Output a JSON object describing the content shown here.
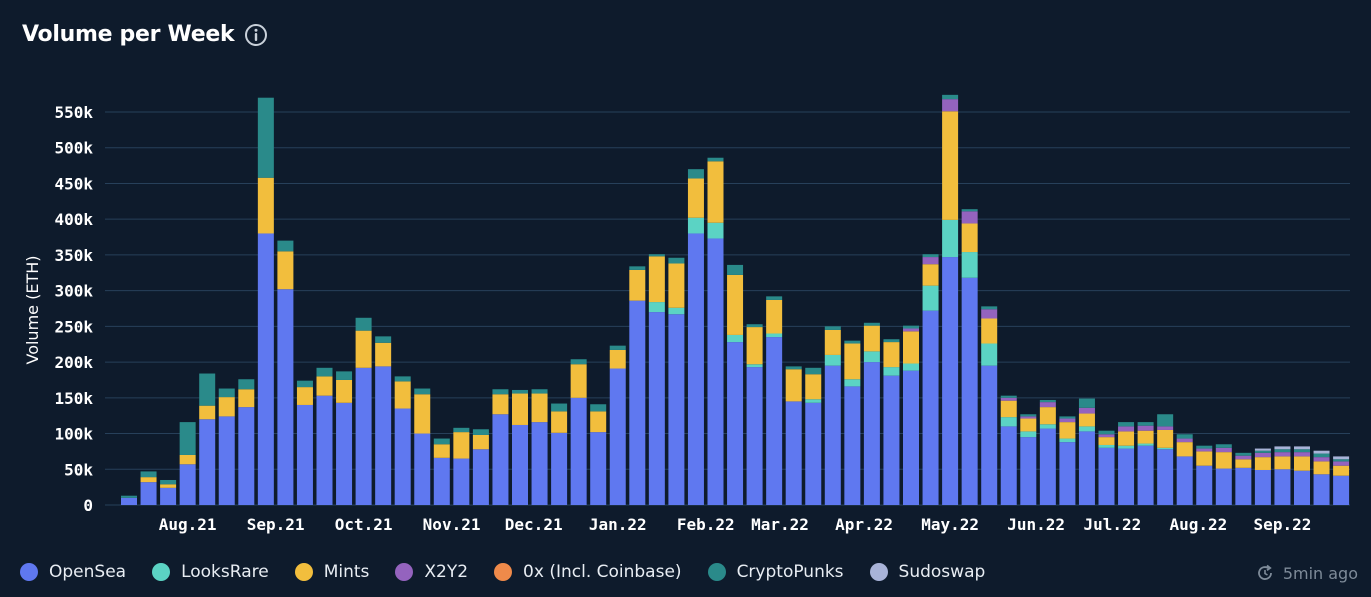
{
  "header": {
    "title": "Volume per Week",
    "info_icon": "info-icon"
  },
  "updated": {
    "text": "5min ago",
    "icon": "refresh-icon"
  },
  "colors": {
    "background": "#0e1b2c",
    "grid": "#27405a",
    "OpenSea": "#5f78f0",
    "LooksRare": "#5bd3c4",
    "Mints": "#f2be3d",
    "X2Y2": "#9463be",
    "0x (Incl. Coinbase)": "#ef8a4a",
    "CryptoPunks": "#2a8a8a",
    "Sudoswap": "#a8b3d8"
  },
  "legend": [
    "OpenSea",
    "LooksRare",
    "Mints",
    "X2Y2",
    "0x (Incl. Coinbase)",
    "CryptoPunks",
    "Sudoswap"
  ],
  "chart_data": {
    "type": "bar",
    "stacked": true,
    "title": "Volume per Week",
    "ylabel": "Volume (ETH)",
    "xlabel": "",
    "ylim": [
      0,
      580000
    ],
    "yticks": [
      0,
      50000,
      100000,
      150000,
      200000,
      250000,
      300000,
      350000,
      400000,
      450000,
      500000,
      550000
    ],
    "ytick_labels": [
      "0",
      "50k",
      "100k",
      "150k",
      "200k",
      "250k",
      "300k",
      "350k",
      "400k",
      "450k",
      "500k",
      "550k"
    ],
    "xtick_labels": [
      {
        "label": "Aug.21",
        "bar_index": 3
      },
      {
        "label": "Sep.21",
        "bar_index": 7.5
      },
      {
        "label": "Oct.21",
        "bar_index": 12
      },
      {
        "label": "Nov.21",
        "bar_index": 16.5
      },
      {
        "label": "Dec.21",
        "bar_index": 20.7
      },
      {
        "label": "Jan.22",
        "bar_index": 25
      },
      {
        "label": "Feb.22",
        "bar_index": 29.5
      },
      {
        "label": "Mar.22",
        "bar_index": 33.3
      },
      {
        "label": "Apr.22",
        "bar_index": 37.6
      },
      {
        "label": "May.22",
        "bar_index": 42
      },
      {
        "label": "Jun.22",
        "bar_index": 46.4
      },
      {
        "label": "Jul.22",
        "bar_index": 50.3
      },
      {
        "label": "Aug.22",
        "bar_index": 54.7
      },
      {
        "label": "Sep.22",
        "bar_index": 59
      }
    ],
    "grid": true,
    "legend_position": "bottom",
    "series": [
      {
        "name": "OpenSea",
        "values": [
          10000,
          32000,
          24000,
          57000,
          120000,
          124000,
          137000,
          380000,
          302000,
          140000,
          153000,
          143000,
          192000,
          194000,
          135000,
          100000,
          66000,
          65000,
          78000,
          127000,
          112000,
          116000,
          101000,
          150000,
          102000,
          191000,
          286000,
          270000,
          267000,
          380000,
          373000,
          228000,
          193000,
          235000,
          145000,
          143000,
          195000,
          166000,
          200000,
          181000,
          188000,
          272000,
          347000,
          318000,
          195000,
          110000,
          95000,
          107000,
          88000,
          103000,
          80000,
          79000,
          83000,
          78000,
          68000,
          55000,
          51000,
          52000,
          49000,
          50000,
          48000,
          43000,
          41000
        ]
      },
      {
        "name": "LooksRare",
        "values": [
          0,
          0,
          0,
          0,
          0,
          0,
          0,
          0,
          0,
          0,
          0,
          0,
          0,
          0,
          0,
          0,
          0,
          0,
          0,
          0,
          0,
          0,
          0,
          0,
          0,
          0,
          0,
          14000,
          9000,
          22000,
          22000,
          10000,
          4000,
          5000,
          0,
          5000,
          15000,
          10000,
          15000,
          12000,
          10000,
          35000,
          52000,
          36000,
          31000,
          13000,
          8000,
          6000,
          5000,
          7000,
          4000,
          4000,
          3000,
          2000,
          0,
          0,
          0,
          0,
          0,
          0,
          0,
          0,
          0
        ]
      },
      {
        "name": "Mints",
        "values": [
          0,
          7000,
          5000,
          13000,
          19000,
          27000,
          25000,
          78000,
          53000,
          25000,
          27000,
          32000,
          52000,
          33000,
          38000,
          55000,
          19000,
          37000,
          20000,
          28000,
          44000,
          40000,
          30000,
          47000,
          29000,
          26000,
          43000,
          64000,
          62000,
          55000,
          86000,
          84000,
          52000,
          47000,
          45000,
          35000,
          35000,
          50000,
          36000,
          35000,
          45000,
          30000,
          152000,
          40000,
          35000,
          23000,
          18000,
          24000,
          23000,
          18000,
          11000,
          20000,
          18000,
          25000,
          20000,
          20000,
          23000,
          12000,
          18000,
          18000,
          20000,
          18000,
          14000
        ]
      },
      {
        "name": "X2Y2",
        "values": [
          0,
          0,
          0,
          0,
          0,
          0,
          0,
          0,
          0,
          0,
          0,
          0,
          0,
          0,
          0,
          0,
          0,
          0,
          0,
          0,
          0,
          0,
          0,
          0,
          0,
          0,
          0,
          0,
          0,
          0,
          0,
          0,
          0,
          0,
          0,
          0,
          0,
          0,
          0,
          0,
          4000,
          10000,
          17000,
          17000,
          13000,
          4000,
          3000,
          7000,
          5000,
          8000,
          4000,
          7000,
          7000,
          5000,
          5000,
          4000,
          6000,
          5000,
          6000,
          6000,
          6000,
          6000,
          6000
        ]
      },
      {
        "name": "0x (Incl. Coinbase)",
        "values": [
          0,
          0,
          0,
          0,
          0,
          0,
          0,
          0,
          0,
          0,
          0,
          0,
          0,
          0,
          0,
          0,
          0,
          0,
          0,
          0,
          0,
          0,
          0,
          0,
          0,
          0,
          0,
          0,
          0,
          0,
          0,
          0,
          0,
          0,
          0,
          0,
          0,
          0,
          0,
          0,
          0,
          0,
          0,
          0,
          0,
          0,
          0,
          0,
          0,
          0,
          0,
          0,
          0,
          0,
          0,
          0,
          0,
          0,
          0,
          0,
          0,
          0,
          0
        ]
      },
      {
        "name": "CryptoPunks",
        "values": [
          3000,
          8000,
          6000,
          46000,
          45000,
          12000,
          14000,
          112000,
          15000,
          9000,
          12000,
          12000,
          18000,
          9000,
          7000,
          8000,
          8000,
          6000,
          8000,
          7000,
          5000,
          6000,
          11000,
          7000,
          10000,
          6000,
          5000,
          3000,
          8000,
          13000,
          5000,
          14000,
          4000,
          5000,
          4000,
          9000,
          5000,
          4000,
          4000,
          4000,
          4000,
          4000,
          6000,
          3000,
          4000,
          3000,
          3000,
          3000,
          3000,
          13000,
          5000,
          6000,
          5000,
          17000,
          6000,
          4000,
          5000,
          4000,
          3000,
          4000,
          4000,
          5000,
          3000
        ]
      },
      {
        "name": "Sudoswap",
        "values": [
          0,
          0,
          0,
          0,
          0,
          0,
          0,
          0,
          0,
          0,
          0,
          0,
          0,
          0,
          0,
          0,
          0,
          0,
          0,
          0,
          0,
          0,
          0,
          0,
          0,
          0,
          0,
          0,
          0,
          0,
          0,
          0,
          0,
          0,
          0,
          0,
          0,
          0,
          0,
          0,
          0,
          0,
          0,
          0,
          0,
          0,
          0,
          0,
          0,
          0,
          0,
          0,
          0,
          0,
          0,
          0,
          0,
          0,
          3000,
          4000,
          4000,
          4000,
          4000
        ]
      }
    ]
  }
}
